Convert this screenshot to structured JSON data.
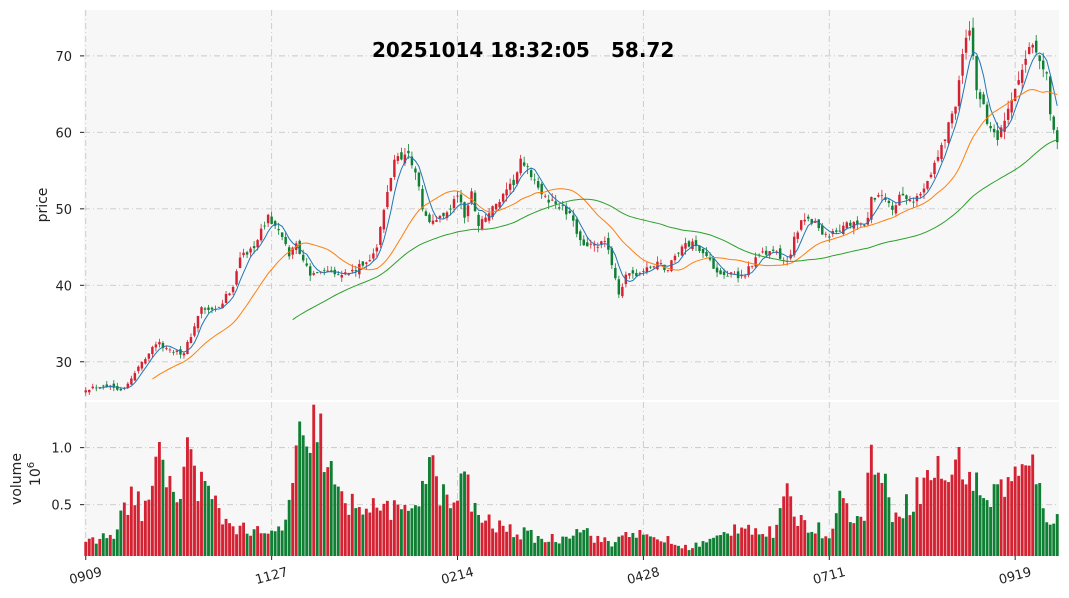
{
  "title": {
    "datetime": "20251014 18:32:05",
    "last_price": "58.72"
  },
  "colors": {
    "up": "#d42232",
    "down": "#0e7f33",
    "ma_short": "#1f77b4",
    "ma_mid": "#ff7f0e",
    "ma_long": "#2ca02c",
    "background": "#f7f7f7",
    "grid": "#c8c8c8"
  },
  "chart_data": [
    {
      "type": "candlestick",
      "panel": "price",
      "ylabel": "price",
      "ylim": [
        25,
        76
      ],
      "yticks": [
        30,
        40,
        50,
        60,
        70
      ],
      "x_date_labels": [
        "0909",
        "1127",
        "0214",
        "0428",
        "0711",
        "0919"
      ],
      "x_date_label_indices": [
        0,
        53,
        106,
        159,
        212,
        265
      ],
      "bar_count": 278,
      "grid": true,
      "close_anchors": [
        [
          0,
          26.5
        ],
        [
          5,
          27
        ],
        [
          10,
          26.5
        ],
        [
          12,
          27
        ],
        [
          16,
          30
        ],
        [
          20,
          32.5
        ],
        [
          24,
          31.5
        ],
        [
          26,
          31.5
        ],
        [
          28,
          31
        ],
        [
          30,
          33.5
        ],
        [
          33,
          37
        ],
        [
          36,
          36.5
        ],
        [
          38,
          37
        ],
        [
          42,
          40
        ],
        [
          44,
          44
        ],
        [
          46,
          44
        ],
        [
          49,
          46
        ],
        [
          52,
          49
        ],
        [
          55,
          47
        ],
        [
          58,
          44
        ],
        [
          60,
          45.5
        ],
        [
          62,
          43.5
        ],
        [
          64,
          41
        ],
        [
          66,
          42
        ],
        [
          70,
          42
        ],
        [
          74,
          41.5
        ],
        [
          77,
          42
        ],
        [
          80,
          43
        ],
        [
          83,
          45
        ],
        [
          86,
          52
        ],
        [
          88,
          56.5
        ],
        [
          90,
          57
        ],
        [
          92,
          57
        ],
        [
          94,
          55
        ],
        [
          96,
          50
        ],
        [
          98,
          48
        ],
        [
          101,
          49
        ],
        [
          104,
          50
        ],
        [
          106,
          52
        ],
        [
          108,
          49
        ],
        [
          110,
          52
        ],
        [
          112,
          48
        ],
        [
          114,
          49
        ],
        [
          116,
          50
        ],
        [
          118,
          51
        ],
        [
          120,
          52
        ],
        [
          122,
          53.5
        ],
        [
          124,
          56
        ],
        [
          126,
          55
        ],
        [
          128,
          54
        ],
        [
          130,
          51.5
        ],
        [
          133,
          51
        ],
        [
          136,
          50
        ],
        [
          138,
          49
        ],
        [
          140,
          47
        ],
        [
          142,
          45.5
        ],
        [
          145,
          45
        ],
        [
          148,
          45.5
        ],
        [
          150,
          43
        ],
        [
          152,
          39
        ],
        [
          154,
          41
        ],
        [
          157,
          41.5
        ],
        [
          160,
          42
        ],
        [
          163,
          43
        ],
        [
          166,
          42
        ],
        [
          168,
          44
        ],
        [
          170,
          45
        ],
        [
          173,
          45.5
        ],
        [
          176,
          44.5
        ],
        [
          178,
          43
        ],
        [
          180,
          42
        ],
        [
          183,
          41.5
        ],
        [
          186,
          41
        ],
        [
          188,
          41.5
        ],
        [
          190,
          43
        ],
        [
          193,
          44
        ],
        [
          196,
          44.5
        ],
        [
          198,
          43.5
        ],
        [
          200,
          43
        ],
        [
          202,
          46
        ],
        [
          204,
          48
        ],
        [
          206,
          49
        ],
        [
          208,
          48
        ],
        [
          210,
          47
        ],
        [
          212,
          46.5
        ],
        [
          214,
          47
        ],
        [
          216,
          47.5
        ],
        [
          218,
          48
        ],
        [
          220,
          48
        ],
        [
          222,
          47.5
        ],
        [
          224,
          51
        ],
        [
          226,
          51.5
        ],
        [
          228,
          51
        ],
        [
          230,
          50
        ],
        [
          232,
          51.5
        ],
        [
          234,
          51
        ],
        [
          236,
          51
        ],
        [
          238,
          52
        ],
        [
          240,
          54
        ],
        [
          242,
          56
        ],
        [
          244,
          58
        ],
        [
          246,
          61
        ],
        [
          248,
          64
        ],
        [
          250,
          70
        ],
        [
          252,
          73.5
        ],
        [
          253,
          70
        ],
        [
          254,
          66
        ],
        [
          256,
          63
        ],
        [
          258,
          60
        ],
        [
          260,
          59
        ],
        [
          262,
          61
        ],
        [
          264,
          64
        ],
        [
          266,
          67
        ],
        [
          268,
          69
        ],
        [
          270,
          72
        ],
        [
          271,
          71
        ],
        [
          272,
          70
        ],
        [
          273,
          68
        ],
        [
          274,
          67
        ],
        [
          275,
          63
        ],
        [
          276,
          61
        ],
        [
          277,
          58.72
        ]
      ],
      "moving_averages": [
        {
          "period": 5,
          "start_index": 4
        },
        {
          "period": 20,
          "start_index": 19
        },
        {
          "period": 60,
          "start_index": 59
        }
      ]
    },
    {
      "type": "bar",
      "panel": "volume",
      "ylabel": "volume",
      "ylabel_exponent": "6",
      "ylim": [
        0.05,
        1.4
      ],
      "yticks": [
        0.5,
        1.0
      ],
      "ytick_labels": [
        "0.5",
        "1.0"
      ],
      "grid": true,
      "volume_anchors": [
        [
          0,
          0.15
        ],
        [
          8,
          0.25
        ],
        [
          12,
          0.5
        ],
        [
          14,
          0.65
        ],
        [
          16,
          0.4
        ],
        [
          22,
          0.95
        ],
        [
          24,
          0.7
        ],
        [
          26,
          0.45
        ],
        [
          30,
          1.08
        ],
        [
          32,
          0.7
        ],
        [
          35,
          0.58
        ],
        [
          40,
          0.35
        ],
        [
          46,
          0.28
        ],
        [
          52,
          0.22
        ],
        [
          56,
          0.3
        ],
        [
          58,
          0.5
        ],
        [
          61,
          1.05
        ],
        [
          63,
          0.85
        ],
        [
          66,
          1.33
        ],
        [
          68,
          0.9
        ],
        [
          70,
          0.75
        ],
        [
          74,
          0.45
        ],
        [
          78,
          0.55
        ],
        [
          82,
          0.45
        ],
        [
          86,
          0.5
        ],
        [
          90,
          0.38
        ],
        [
          94,
          0.55
        ],
        [
          98,
          0.85
        ],
        [
          100,
          0.7
        ],
        [
          104,
          0.45
        ],
        [
          108,
          0.75
        ],
        [
          110,
          0.5
        ],
        [
          114,
          0.35
        ],
        [
          118,
          0.3
        ],
        [
          124,
          0.25
        ],
        [
          130,
          0.2
        ],
        [
          136,
          0.2
        ],
        [
          140,
          0.32
        ],
        [
          146,
          0.2
        ],
        [
          150,
          0.15
        ],
        [
          155,
          0.28
        ],
        [
          160,
          0.2
        ],
        [
          165,
          0.2
        ],
        [
          170,
          0.12
        ],
        [
          175,
          0.15
        ],
        [
          180,
          0.2
        ],
        [
          184,
          0.28
        ],
        [
          188,
          0.35
        ],
        [
          192,
          0.25
        ],
        [
          196,
          0.25
        ],
        [
          200,
          0.55
        ],
        [
          204,
          0.35
        ],
        [
          208,
          0.3
        ],
        [
          212,
          0.22
        ],
        [
          214,
          0.55
        ],
        [
          218,
          0.45
        ],
        [
          222,
          0.32
        ],
        [
          224,
          1.12
        ],
        [
          226,
          0.8
        ],
        [
          230,
          0.45
        ],
        [
          234,
          0.5
        ],
        [
          238,
          0.65
        ],
        [
          242,
          0.8
        ],
        [
          246,
          0.75
        ],
        [
          250,
          0.88
        ],
        [
          254,
          0.65
        ],
        [
          258,
          0.55
        ],
        [
          262,
          0.7
        ],
        [
          266,
          0.75
        ],
        [
          270,
          0.8
        ],
        [
          274,
          0.42
        ],
        [
          277,
          0.35
        ]
      ]
    }
  ]
}
